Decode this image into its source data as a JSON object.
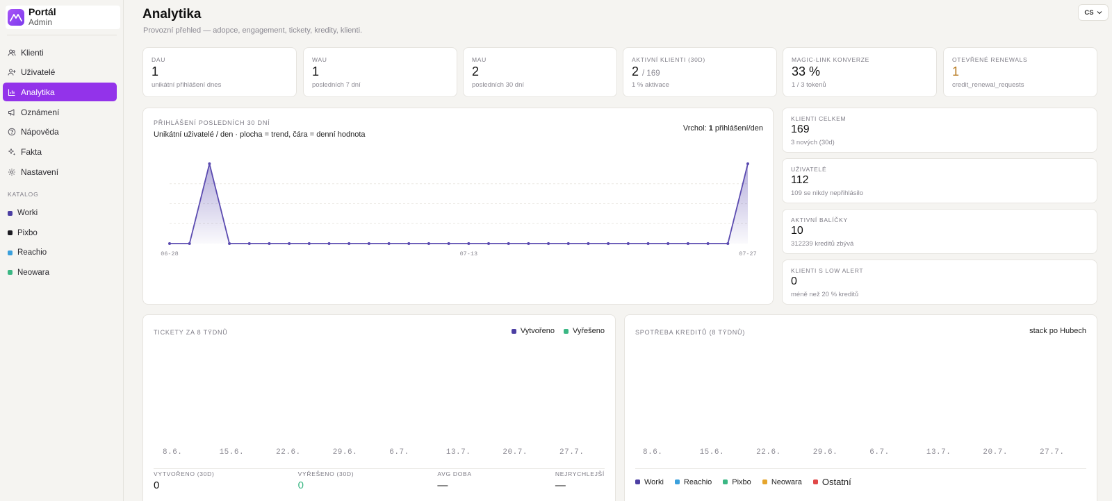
{
  "brand": {
    "title": "Portál",
    "subtitle": "Admin"
  },
  "nav": [
    {
      "label": "Klienti",
      "icon": "users-icon"
    },
    {
      "label": "Uživatelé",
      "icon": "user-plus-icon"
    },
    {
      "label": "Analytika",
      "icon": "chart-icon",
      "active": true
    },
    {
      "label": "Oznámení",
      "icon": "megaphone-icon"
    },
    {
      "label": "Nápověda",
      "icon": "help-circle-icon"
    },
    {
      "label": "Fakta",
      "icon": "sparkles-icon"
    },
    {
      "label": "Nastavení",
      "icon": "gear-icon"
    }
  ],
  "catalog": {
    "label": "KATALOG",
    "items": [
      {
        "label": "Worki",
        "color": "#4c3fa3"
      },
      {
        "label": "Pixbo",
        "color": "#1c1b22"
      },
      {
        "label": "Reachio",
        "color": "#3ba0dc"
      },
      {
        "label": "Neowara",
        "color": "#3bb784"
      }
    ]
  },
  "header": {
    "title": "Analytika",
    "subtitle": "Provozní přehled — adopce, engagement, tickety, kredity, klienti.",
    "lang": "CS"
  },
  "kpis": [
    {
      "label": "DAU",
      "value": "1",
      "sub": "unikátní přihlášení dnes"
    },
    {
      "label": "WAU",
      "value": "1",
      "sub": "posledních 7 dní"
    },
    {
      "label": "MAU",
      "value": "2",
      "sub": "posledních 30 dní"
    },
    {
      "label": "AKTIVNÍ KLIENTI (30D)",
      "value": "2",
      "of": "/ 169",
      "sub": "1 % aktivace"
    },
    {
      "label": "MAGIC-LINK KONVERZE",
      "value": "33 %",
      "sub": "1 / 3 tokenů"
    },
    {
      "label": "OTEVŘENÉ RENEWALS",
      "value": "1",
      "sub": "credit_renewal_requests",
      "value_color": "#b7791f"
    }
  ],
  "logins": {
    "label": "PŘIHLÁŠENÍ POSLEDNÍCH 30 DNÍ",
    "subtitle": "Unikátní uživatelé / den · plocha = trend, čára = denní hodnota",
    "peak_prefix": "Vrchol:",
    "peak_value": "1",
    "peak_suffix": "přihlášení/den",
    "line_color": "#5b4bb0"
  },
  "side_stats": [
    {
      "label": "KLIENTI CELKEM",
      "value": "169",
      "sub": "3 nových (30d)"
    },
    {
      "label": "UŽIVATELÉ",
      "value": "112",
      "sub": "109 se nikdy nepřihlásilo"
    },
    {
      "label": "AKTIVNÍ BALÍČKY",
      "value": "10",
      "sub": "312239 kreditů zbývá"
    },
    {
      "label": "KLIENTI S LOW ALERT",
      "value": "0",
      "sub": "méně než 20 % kreditů"
    }
  ],
  "tickets": {
    "label": "TICKETY ZA 8 TÝDNŮ",
    "legend": [
      {
        "label": "Vytvořeno",
        "color": "#4c3fa3"
      },
      {
        "label": "Vyřešeno",
        "color": "#3bb784"
      }
    ],
    "weeks": [
      "8.6.",
      "15.6.",
      "22.6.",
      "29.6.",
      "6.7.",
      "13.7.",
      "20.7.",
      "27.7."
    ],
    "stats": [
      {
        "label": "VYTVOŘENO (30D)",
        "value": "0"
      },
      {
        "label": "VYŘEŠENO (30D)",
        "value": "0",
        "color": "#3bb784"
      },
      {
        "label": "AVG DOBA",
        "value": "—"
      },
      {
        "label": "NEJRYCHLEJŠÍ",
        "value": "—"
      }
    ]
  },
  "credits": {
    "label": "SPOTŘEBA KREDITŮ (8 TÝDNŮ)",
    "note": "stack po Hubech",
    "weeks": [
      "8.6.",
      "15.6.",
      "22.6.",
      "29.6.",
      "6.7.",
      "13.7.",
      "20.7.",
      "27.7."
    ],
    "legend": [
      {
        "label": "Worki",
        "color": "#4c3fa3"
      },
      {
        "label": "Reachio",
        "color": "#3ba0dc"
      },
      {
        "label": "Pixbo",
        "color": "#3bb784"
      },
      {
        "label": "Neowara",
        "color": "#e5a52d"
      },
      {
        "label": "Ostatní",
        "color": "#e04848"
      }
    ]
  },
  "chart_data": {
    "type": "line",
    "title": "PŘIHLÁŠENÍ POSLEDNÍCH 30 DNÍ",
    "xlabel": "",
    "ylabel": "",
    "x": [
      "06-28",
      "06-29",
      "06-30",
      "07-01",
      "07-02",
      "07-03",
      "07-04",
      "07-05",
      "07-06",
      "07-07",
      "07-08",
      "07-09",
      "07-10",
      "07-11",
      "07-12",
      "07-13",
      "07-14",
      "07-15",
      "07-16",
      "07-17",
      "07-18",
      "07-19",
      "07-20",
      "07-21",
      "07-22",
      "07-23",
      "07-24",
      "07-25",
      "07-26",
      "07-27"
    ],
    "tick_labels": [
      "06-28",
      "07-13",
      "07-27"
    ],
    "series": [
      {
        "values": [
          0,
          0,
          1,
          0,
          0,
          0,
          0,
          0,
          0,
          0,
          0,
          0,
          0,
          0,
          0,
          0,
          0,
          0,
          0,
          0,
          0,
          0,
          0,
          0,
          0,
          0,
          0,
          0,
          0,
          1
        ]
      }
    ],
    "ylim": [
      0,
      1
    ],
    "grid": true
  }
}
